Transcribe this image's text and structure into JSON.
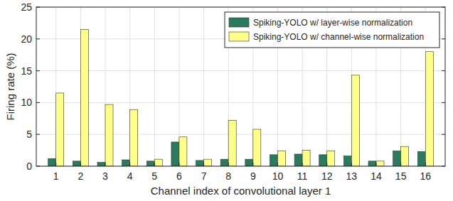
{
  "chart_data": {
    "type": "bar",
    "x_label": "Channel index of convolutional layer 1",
    "y_label": "Firing rate (%)",
    "categories": [
      "1",
      "2",
      "3",
      "4",
      "5",
      "6",
      "7",
      "8",
      "9",
      "10",
      "11",
      "12",
      "13",
      "14",
      "15",
      "16"
    ],
    "series": [
      {
        "name": "Spiking-YOLO w/ layer-wise normalization",
        "color": "#2a7a60",
        "values": [
          1.2,
          0.8,
          0.6,
          1.0,
          0.8,
          3.8,
          0.9,
          1.1,
          1.1,
          1.8,
          1.9,
          1.8,
          1.6,
          0.8,
          2.4,
          2.3
        ]
      },
      {
        "name": "Spiking-YOLO w/ channel-wise normalization",
        "color": "#ffff88",
        "values": [
          11.5,
          21.5,
          9.7,
          8.9,
          1.1,
          4.6,
          1.1,
          7.2,
          5.8,
          2.4,
          2.5,
          2.4,
          14.3,
          0.8,
          3.1,
          18.0
        ]
      }
    ],
    "ylim": [
      0,
      25
    ],
    "yticks": [
      0,
      5,
      10,
      15,
      20,
      25
    ],
    "grid": true,
    "legend": "upper right"
  }
}
